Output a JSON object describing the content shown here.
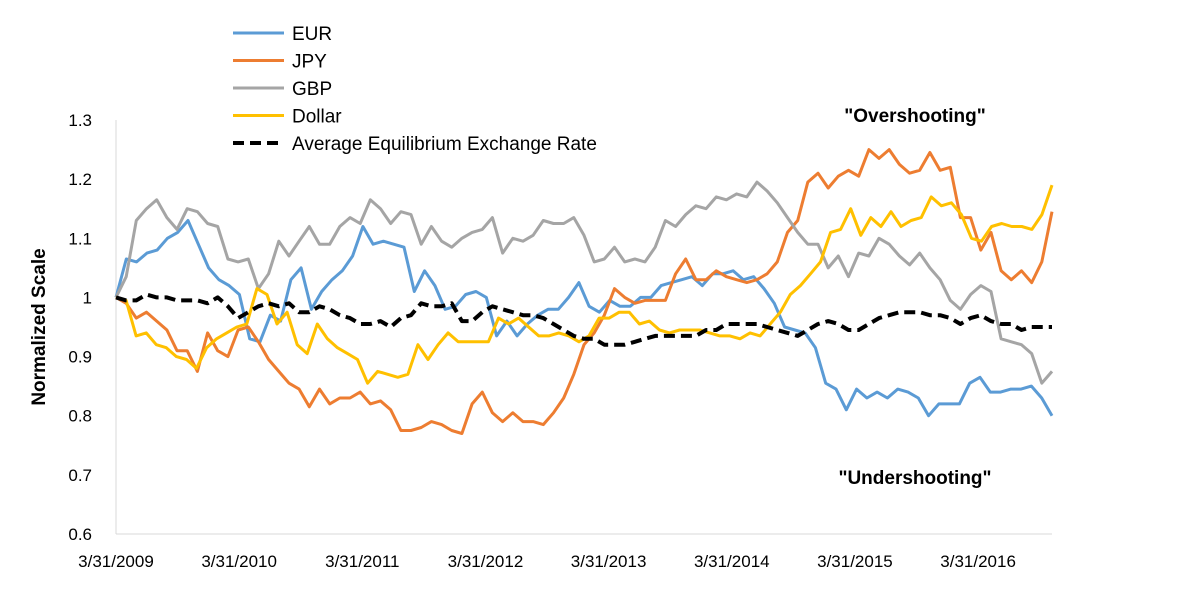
{
  "chart_data": {
    "type": "line",
    "title": "",
    "xlabel": "",
    "ylabel": "Normalized Scale",
    "ylim": [
      0.6,
      1.3
    ],
    "yticks": [
      "0.6",
      "0.7",
      "0.8",
      "0.9",
      "1",
      "1.1",
      "1.2",
      "1.3"
    ],
    "xticks": [
      "3/31/2009",
      "3/31/2010",
      "3/31/2011",
      "3/31/2012",
      "3/31/2013",
      "3/31/2014",
      "3/31/2015",
      "3/31/2016"
    ],
    "x_start": 2009.0,
    "x_end": 2016.6,
    "grid": false,
    "legend_position": "top-left",
    "annotations": {
      "overshooting": "\"Overshooting\"",
      "undershooting": "\"Undershooting\""
    },
    "series": [
      {
        "name": "EUR",
        "color": "#5B9BD5",
        "dash": "solid",
        "values": [
          1.0,
          1.065,
          1.06,
          1.075,
          1.08,
          1.1,
          1.11,
          1.13,
          1.09,
          1.05,
          1.03,
          1.02,
          1.005,
          0.93,
          0.925,
          0.97,
          0.96,
          1.03,
          1.05,
          0.98,
          1.01,
          1.03,
          1.045,
          1.07,
          1.12,
          1.09,
          1.095,
          1.09,
          1.085,
          1.01,
          1.045,
          1.02,
          0.98,
          0.985,
          1.005,
          1.01,
          1.0,
          0.935,
          0.96,
          0.935,
          0.955,
          0.97,
          0.98,
          0.98,
          1.0,
          1.025,
          0.985,
          0.975,
          0.995,
          0.985,
          0.985,
          1.0,
          1.0,
          1.02,
          1.025,
          1.03,
          1.035,
          1.02,
          1.04,
          1.04,
          1.045,
          1.03,
          1.035,
          1.015,
          0.99,
          0.95,
          0.945,
          0.94,
          0.915,
          0.855,
          0.845,
          0.81,
          0.845,
          0.83,
          0.84,
          0.83,
          0.845,
          0.84,
          0.83,
          0.8,
          0.82,
          0.82,
          0.82,
          0.855,
          0.865,
          0.84,
          0.84,
          0.845,
          0.845,
          0.85,
          0.83,
          0.8
        ]
      },
      {
        "name": "JPY",
        "color": "#ED7D31",
        "dash": "solid",
        "values": [
          1.0,
          0.99,
          0.965,
          0.975,
          0.96,
          0.945,
          0.91,
          0.91,
          0.875,
          0.94,
          0.91,
          0.9,
          0.945,
          0.95,
          0.925,
          0.895,
          0.875,
          0.855,
          0.845,
          0.815,
          0.845,
          0.82,
          0.83,
          0.83,
          0.84,
          0.82,
          0.825,
          0.81,
          0.775,
          0.775,
          0.78,
          0.79,
          0.785,
          0.775,
          0.77,
          0.82,
          0.84,
          0.805,
          0.79,
          0.805,
          0.79,
          0.79,
          0.785,
          0.805,
          0.83,
          0.87,
          0.92,
          0.94,
          0.97,
          1.015,
          1.0,
          0.99,
          0.995,
          0.995,
          0.995,
          1.04,
          1.065,
          1.03,
          1.03,
          1.045,
          1.035,
          1.03,
          1.025,
          1.03,
          1.04,
          1.06,
          1.11,
          1.13,
          1.195,
          1.21,
          1.185,
          1.205,
          1.215,
          1.205,
          1.25,
          1.235,
          1.25,
          1.225,
          1.21,
          1.215,
          1.245,
          1.215,
          1.22,
          1.135,
          1.135,
          1.08,
          1.11,
          1.045,
          1.03,
          1.045,
          1.025,
          1.06,
          1.145
        ]
      },
      {
        "name": "GBP",
        "color": "#A5A5A5",
        "dash": "solid",
        "values": [
          1.0,
          1.035,
          1.13,
          1.15,
          1.165,
          1.135,
          1.115,
          1.15,
          1.145,
          1.125,
          1.12,
          1.065,
          1.06,
          1.065,
          1.015,
          1.04,
          1.095,
          1.07,
          1.095,
          1.12,
          1.09,
          1.09,
          1.12,
          1.135,
          1.125,
          1.165,
          1.15,
          1.125,
          1.145,
          1.14,
          1.09,
          1.12,
          1.095,
          1.085,
          1.1,
          1.11,
          1.115,
          1.135,
          1.075,
          1.1,
          1.095,
          1.105,
          1.13,
          1.125,
          1.125,
          1.135,
          1.105,
          1.06,
          1.065,
          1.085,
          1.06,
          1.065,
          1.06,
          1.085,
          1.13,
          1.12,
          1.14,
          1.155,
          1.15,
          1.17,
          1.165,
          1.175,
          1.17,
          1.195,
          1.18,
          1.16,
          1.135,
          1.11,
          1.09,
          1.09,
          1.05,
          1.07,
          1.035,
          1.075,
          1.07,
          1.1,
          1.09,
          1.07,
          1.055,
          1.075,
          1.05,
          1.03,
          0.995,
          0.98,
          1.005,
          1.02,
          1.01,
          0.93,
          0.925,
          0.92,
          0.905,
          0.855,
          0.875
        ]
      },
      {
        "name": "Dollar",
        "color": "#FFC000",
        "dash": "solid",
        "values": [
          1.0,
          0.995,
          0.935,
          0.94,
          0.92,
          0.915,
          0.9,
          0.895,
          0.88,
          0.915,
          0.93,
          0.94,
          0.95,
          0.955,
          1.015,
          1.005,
          0.955,
          0.975,
          0.92,
          0.905,
          0.955,
          0.93,
          0.915,
          0.905,
          0.895,
          0.855,
          0.875,
          0.87,
          0.865,
          0.87,
          0.92,
          0.895,
          0.92,
          0.94,
          0.925,
          0.925,
          0.925,
          0.925,
          0.965,
          0.955,
          0.965,
          0.95,
          0.935,
          0.935,
          0.94,
          0.935,
          0.925,
          0.935,
          0.965,
          0.965,
          0.975,
          0.975,
          0.955,
          0.96,
          0.945,
          0.94,
          0.945,
          0.945,
          0.945,
          0.94,
          0.935,
          0.935,
          0.93,
          0.94,
          0.935,
          0.955,
          0.975,
          1.005,
          1.02,
          1.04,
          1.06,
          1.11,
          1.115,
          1.15,
          1.105,
          1.135,
          1.12,
          1.145,
          1.12,
          1.13,
          1.135,
          1.17,
          1.155,
          1.16,
          1.14,
          1.1,
          1.095,
          1.12,
          1.125,
          1.12,
          1.12,
          1.115,
          1.14,
          1.19
        ]
      },
      {
        "name": "Average Equilibrium Exchange Rate",
        "color": "#000000",
        "dash": "dashed",
        "values": [
          1.0,
          0.995,
          0.995,
          1.005,
          1.0,
          1.0,
          0.995,
          0.995,
          0.995,
          0.99,
          1.0,
          0.985,
          0.965,
          0.975,
          0.985,
          0.99,
          0.985,
          0.99,
          0.975,
          0.975,
          0.985,
          0.98,
          0.97,
          0.965,
          0.955,
          0.955,
          0.96,
          0.95,
          0.965,
          0.97,
          0.99,
          0.985,
          0.985,
          0.99,
          0.96,
          0.96,
          0.975,
          0.985,
          0.98,
          0.975,
          0.97,
          0.97,
          0.965,
          0.955,
          0.945,
          0.935,
          0.93,
          0.93,
          0.92,
          0.92,
          0.92,
          0.925,
          0.93,
          0.935,
          0.935,
          0.935,
          0.935,
          0.935,
          0.945,
          0.945,
          0.955,
          0.955,
          0.955,
          0.955,
          0.95,
          0.945,
          0.94,
          0.935,
          0.945,
          0.955,
          0.96,
          0.955,
          0.945,
          0.945,
          0.955,
          0.965,
          0.97,
          0.975,
          0.975,
          0.975,
          0.97,
          0.97,
          0.965,
          0.955,
          0.965,
          0.97,
          0.96,
          0.955,
          0.955,
          0.945,
          0.95,
          0.95,
          0.95
        ]
      }
    ]
  }
}
